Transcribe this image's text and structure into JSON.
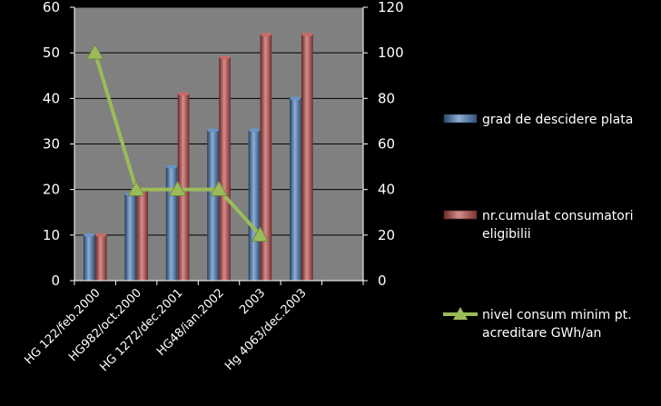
{
  "chart_data": {
    "type": "bar",
    "title": "",
    "categories": [
      "HG 122/feb.2000",
      "HG982/oct.2000",
      "HG 1272/dec.2001",
      "HG48/ian.2002",
      "2003",
      "Hg 4063/dec.2003"
    ],
    "series": [
      {
        "name": "grad de descidere plata",
        "kind": "bar",
        "axis": "left",
        "color": "#4f81bd",
        "values": [
          10,
          19,
          25,
          33,
          33,
          40
        ]
      },
      {
        "name": "nr.cumulat consumatori eligibilii",
        "kind": "bar",
        "axis": "right",
        "color": "#c0504d",
        "values": [
          20,
          40,
          82,
          98,
          108,
          108
        ]
      },
      {
        "name": "nivel consum minim pt. acreditare GWh/an",
        "kind": "line",
        "marker": "triangle",
        "axis": "right",
        "color": "#9bbb59",
        "values": [
          100,
          40,
          40,
          40,
          20,
          null
        ]
      }
    ],
    "y_left": {
      "min": 0,
      "max": 60,
      "ticks": [
        0,
        10,
        20,
        30,
        40,
        50,
        60
      ]
    },
    "y_right": {
      "min": 0,
      "max": 120,
      "ticks": [
        0,
        20,
        40,
        60,
        80,
        100,
        120
      ]
    },
    "category_slots": 7,
    "plot_background": "#808080",
    "gridlines": true,
    "legend_position": "right",
    "legend": [
      {
        "label_lines": [
          "grad de descidere plata"
        ],
        "series": 0
      },
      {
        "label_lines": [
          "nr.cumulat consumatori",
          "eligibilii"
        ],
        "series": 1
      },
      {
        "label_lines": [
          "nivel consum minim pt.",
          "acreditare GWh/an"
        ],
        "series": 2
      }
    ]
  }
}
